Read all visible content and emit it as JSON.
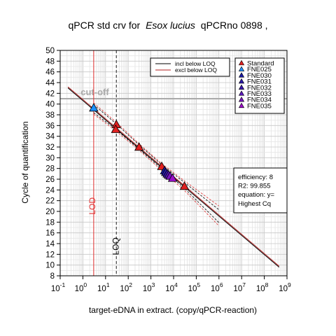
{
  "chart_data": {
    "type": "scatter",
    "title_prefix": "qPCR std crv for",
    "title_species": "Esox lucius",
    "title_suffix": "qPCRno  0898 ,",
    "xlabel": "target-eDNA in extract. (copy/qPCR-reaction)",
    "ylabel": "Cycle of quantification",
    "x_scale": "log10",
    "xlim": [
      0.1,
      1000000000
    ],
    "ylim": [
      8,
      50
    ],
    "grid": true,
    "x_ticks": [
      {
        "value": 0.1,
        "base": "10",
        "exp": "-1"
      },
      {
        "value": 1,
        "base": "10",
        "exp": "0"
      },
      {
        "value": 10,
        "base": "10",
        "exp": "1"
      },
      {
        "value": 100,
        "base": "10",
        "exp": "2"
      },
      {
        "value": 1000,
        "base": "10",
        "exp": "3"
      },
      {
        "value": 10000,
        "base": "10",
        "exp": "4"
      },
      {
        "value": 100000,
        "base": "10",
        "exp": "5"
      },
      {
        "value": 1000000,
        "base": "10",
        "exp": "6"
      },
      {
        "value": 10000000,
        "base": "10",
        "exp": "7"
      },
      {
        "value": 100000000,
        "base": "10",
        "exp": "8"
      },
      {
        "value": 1000000000,
        "base": "10",
        "exp": "9"
      }
    ],
    "y_ticks": [
      8,
      10,
      12,
      14,
      16,
      18,
      20,
      22,
      24,
      26,
      28,
      30,
      32,
      34,
      36,
      38,
      40,
      42,
      44,
      46,
      48,
      50
    ],
    "cutoff": {
      "y": 41,
      "label": "cut-off",
      "color": "#aaaaaa"
    },
    "lod": {
      "x": 3,
      "label": "LOD",
      "color": "#e03030"
    },
    "loq": {
      "x": 30,
      "label": "LOQ",
      "color": "#404040"
    },
    "lines": [
      {
        "name": "incl below LOQ",
        "color": "#000000",
        "x": [
          0.22,
          450000000
        ],
        "y": [
          43.0,
          9.6
        ]
      },
      {
        "name": "excl below LOQ",
        "color": "#b22222",
        "x": [
          0.22,
          450000000
        ],
        "y": [
          43.2,
          9.8
        ]
      }
    ],
    "confidence_bands": {
      "color_incl": "#000000",
      "color_excl": "#e03030",
      "x": [
        3,
        30,
        300,
        3000,
        30000,
        1000000
      ],
      "incl_upper": [
        39.9,
        36.3,
        32.4,
        28.7,
        25.4,
        20.3
      ],
      "incl_lower": [
        38.4,
        35.2,
        31.6,
        27.9,
        24.3,
        17.9
      ],
      "excl_upper": [
        40.2,
        36.6,
        32.6,
        28.9,
        25.7,
        21.0
      ],
      "excl_lower": [
        38.1,
        34.9,
        31.4,
        27.6,
        23.9,
        17.3
      ]
    },
    "series": [
      {
        "name": "Standard",
        "color": "#e02020",
        "points": [
          {
            "x": 30,
            "y": 36.2
          },
          {
            "x": 28,
            "y": 35.3
          },
          {
            "x": 300,
            "y": 32.0
          },
          {
            "x": 3000,
            "y": 28.4
          },
          {
            "x": 30000,
            "y": 24.7
          }
        ]
      },
      {
        "name": "FNE025",
        "color": "#1e90ff",
        "points": [
          {
            "x": 3,
            "y": 39.3
          }
        ]
      },
      {
        "name": "FNE030",
        "color": "#1a1aa0",
        "points": [
          {
            "x": 4000,
            "y": 27.6
          }
        ]
      },
      {
        "name": "FNE031",
        "color": "#2a1aa8",
        "points": [
          {
            "x": 4500,
            "y": 27.3
          }
        ]
      },
      {
        "name": "FNE032",
        "color": "#3a18b0",
        "points": [
          {
            "x": 5200,
            "y": 27.0
          }
        ]
      },
      {
        "name": "FNE033",
        "color": "#5a18b8",
        "points": [
          {
            "x": 6000,
            "y": 26.8
          }
        ]
      },
      {
        "name": "FNE034",
        "color": "#7a14c0",
        "points": [
          {
            "x": 7000,
            "y": 26.6
          }
        ]
      },
      {
        "name": "FNE035",
        "color": "#9a10c8",
        "points": [
          {
            "x": 9000,
            "y": 26.2
          }
        ]
      }
    ],
    "legend_lines": [
      "incl below LOQ",
      "excl below LOQ"
    ],
    "legend_points": [
      "Standard",
      "FNE025",
      "FNE030",
      "FNE031",
      "FNE032",
      "FNE033",
      "FNE034",
      "FNE035"
    ],
    "stats_box": [
      "efficiency: 8",
      "R2: 99.855",
      "equation: y=",
      "Highest Cq"
    ]
  }
}
